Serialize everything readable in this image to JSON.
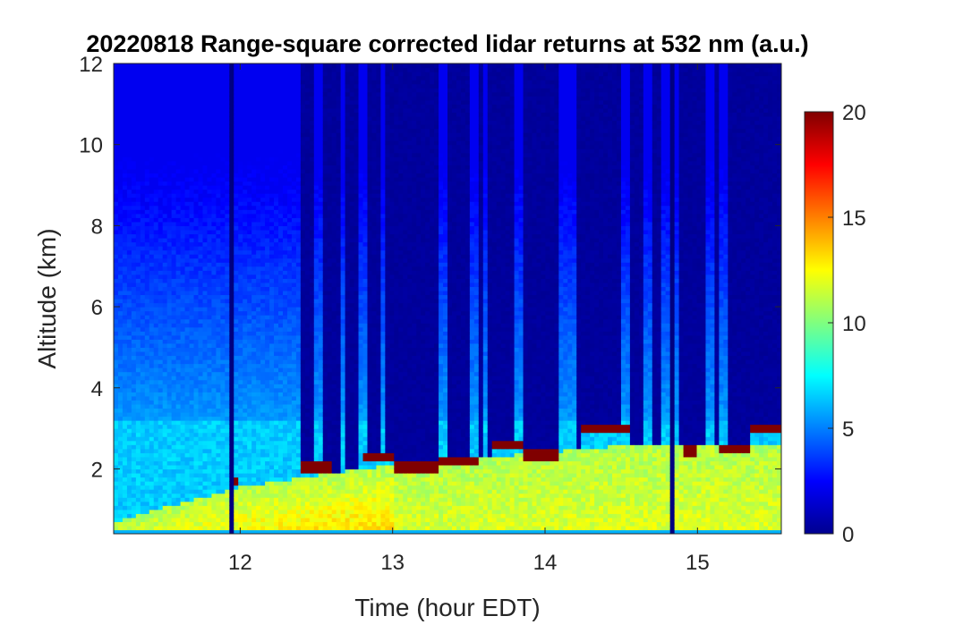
{
  "chart_data": {
    "type": "heatmap",
    "title": "20220818  Range-square corrected lidar returns at 532 nm (a.u.)",
    "xlabel": "Time (hour EDT)",
    "ylabel": "Altitude (km)",
    "xlim": [
      11.17,
      15.55
    ],
    "ylim": [
      0.4,
      12
    ],
    "x_ticks": [
      12,
      13,
      14,
      15
    ],
    "y_ticks": [
      2,
      4,
      6,
      8,
      10,
      12
    ],
    "colormap": "jet",
    "colorbar": {
      "range": [
        0,
        20
      ],
      "ticks": [
        0,
        5,
        10,
        15,
        20
      ]
    },
    "features": {
      "boundary_layer_top_km": [
        [
          11.17,
          0.7
        ],
        [
          11.5,
          1.05
        ],
        [
          12.0,
          1.55
        ],
        [
          12.5,
          1.85
        ],
        [
          12.9,
          2.05
        ],
        [
          13.3,
          2.15
        ],
        [
          13.6,
          2.3
        ],
        [
          14.0,
          2.4
        ],
        [
          14.4,
          2.55
        ],
        [
          15.0,
          2.6
        ],
        [
          15.55,
          2.6
        ]
      ],
      "residual_layer_top_km": 3.2,
      "cloud_layers": [
        {
          "t_start": 11.95,
          "t_end": 12.0,
          "alt_km": 1.7
        },
        {
          "t_start": 12.4,
          "t_end": 12.6,
          "alt_km": 2.05
        },
        {
          "t_start": 12.8,
          "t_end": 13.0,
          "alt_km": 2.3
        },
        {
          "t_start": 13.0,
          "t_end": 13.3,
          "alt_km": 2.05
        },
        {
          "t_start": 13.3,
          "t_end": 13.55,
          "alt_km": 2.2
        },
        {
          "t_start": 13.65,
          "t_end": 13.85,
          "alt_km": 2.6
        },
        {
          "t_start": 13.85,
          "t_end": 14.1,
          "alt_km": 2.35
        },
        {
          "t_start": 14.25,
          "t_end": 14.55,
          "alt_km": 3.0
        },
        {
          "t_start": 14.9,
          "t_end": 15.0,
          "alt_km": 2.45
        },
        {
          "t_start": 15.15,
          "t_end": 15.35,
          "alt_km": 2.5
        },
        {
          "t_start": 15.3,
          "t_end": 15.55,
          "alt_km": 3.0
        }
      ],
      "attenuated_columns_hours": [
        [
          12.4,
          12.47
        ],
        [
          12.53,
          12.66
        ],
        [
          12.7,
          12.77
        ],
        [
          12.82,
          12.92
        ],
        [
          12.95,
          13.3
        ],
        [
          13.35,
          13.5
        ],
        [
          13.55,
          13.58
        ],
        [
          13.62,
          13.8
        ],
        [
          13.86,
          14.1
        ],
        [
          14.2,
          14.28
        ],
        [
          14.3,
          14.5
        ],
        [
          14.55,
          14.65
        ],
        [
          14.7,
          14.75
        ],
        [
          14.87,
          14.95
        ],
        [
          14.95,
          15.05
        ],
        [
          15.1,
          15.15
        ],
        [
          15.2,
          15.55
        ]
      ],
      "data_gap_hours": [
        11.95,
        14.84
      ]
    }
  }
}
